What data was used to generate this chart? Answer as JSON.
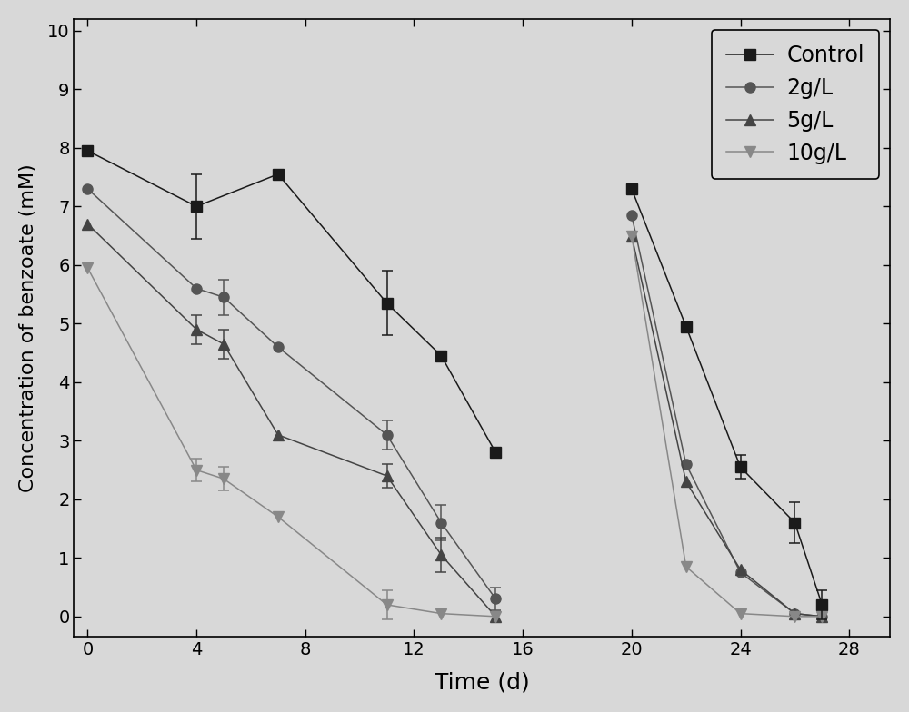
{
  "xlabel": "Time (d)",
  "ylabel": "Concentration of benzoate (mM)",
  "xlim": [
    -0.5,
    29.5
  ],
  "ylim": [
    -0.35,
    10.2
  ],
  "yticks": [
    0,
    1,
    2,
    3,
    4,
    5,
    6,
    7,
    8,
    9,
    10
  ],
  "xticks": [
    0,
    4,
    8,
    12,
    16,
    20,
    24,
    28
  ],
  "background_color": "#d8d8d8",
  "series": [
    {
      "label": "Control",
      "color": "#1a1a1a",
      "marker": "s",
      "markersize": 8,
      "segments": [
        {
          "x": [
            0,
            4,
            7,
            11,
            13,
            15
          ],
          "y": [
            7.95,
            7.0,
            7.55,
            5.35,
            4.45,
            2.8
          ],
          "yerr": [
            null,
            0.55,
            null,
            0.55,
            null,
            null
          ]
        },
        {
          "x": [
            20,
            22,
            24,
            26,
            27
          ],
          "y": [
            7.3,
            4.95,
            2.55,
            1.6,
            0.2
          ],
          "yerr": [
            null,
            null,
            0.2,
            0.35,
            0.25
          ]
        }
      ]
    },
    {
      "label": "2g/L",
      "color": "#555555",
      "marker": "o",
      "markersize": 8,
      "segments": [
        {
          "x": [
            0,
            4,
            5,
            7,
            11,
            13,
            15
          ],
          "y": [
            7.3,
            5.6,
            5.45,
            4.6,
            3.1,
            1.6,
            0.3
          ],
          "yerr": [
            null,
            null,
            0.3,
            null,
            0.25,
            0.3,
            0.2
          ]
        },
        {
          "x": [
            20,
            22,
            24,
            26,
            27
          ],
          "y": [
            6.85,
            2.6,
            0.75,
            0.05,
            0.0
          ],
          "yerr": [
            null,
            null,
            null,
            null,
            null
          ]
        }
      ]
    },
    {
      "label": "5g/L",
      "color": "#444444",
      "marker": "^",
      "markersize": 8,
      "segments": [
        {
          "x": [
            0,
            4,
            5,
            7,
            11,
            13,
            15
          ],
          "y": [
            6.7,
            4.9,
            4.65,
            3.1,
            2.4,
            1.05,
            0.0
          ],
          "yerr": [
            null,
            0.25,
            0.25,
            null,
            0.2,
            0.3,
            null
          ]
        },
        {
          "x": [
            20,
            22,
            24,
            26,
            27
          ],
          "y": [
            6.5,
            2.3,
            0.8,
            0.05,
            0.0
          ],
          "yerr": [
            null,
            null,
            null,
            null,
            null
          ]
        }
      ]
    },
    {
      "label": "10g/L",
      "color": "#888888",
      "marker": "v",
      "markersize": 8,
      "segments": [
        {
          "x": [
            0,
            4,
            5,
            7,
            11,
            13,
            15
          ],
          "y": [
            5.95,
            2.5,
            2.35,
            1.7,
            0.2,
            0.05,
            0.0
          ],
          "yerr": [
            null,
            0.2,
            0.2,
            null,
            0.25,
            null,
            null
          ]
        },
        {
          "x": [
            20,
            22,
            24,
            26,
            27
          ],
          "y": [
            6.5,
            0.85,
            0.05,
            0.0,
            0.0
          ],
          "yerr": [
            null,
            null,
            null,
            null,
            null
          ]
        }
      ]
    }
  ]
}
